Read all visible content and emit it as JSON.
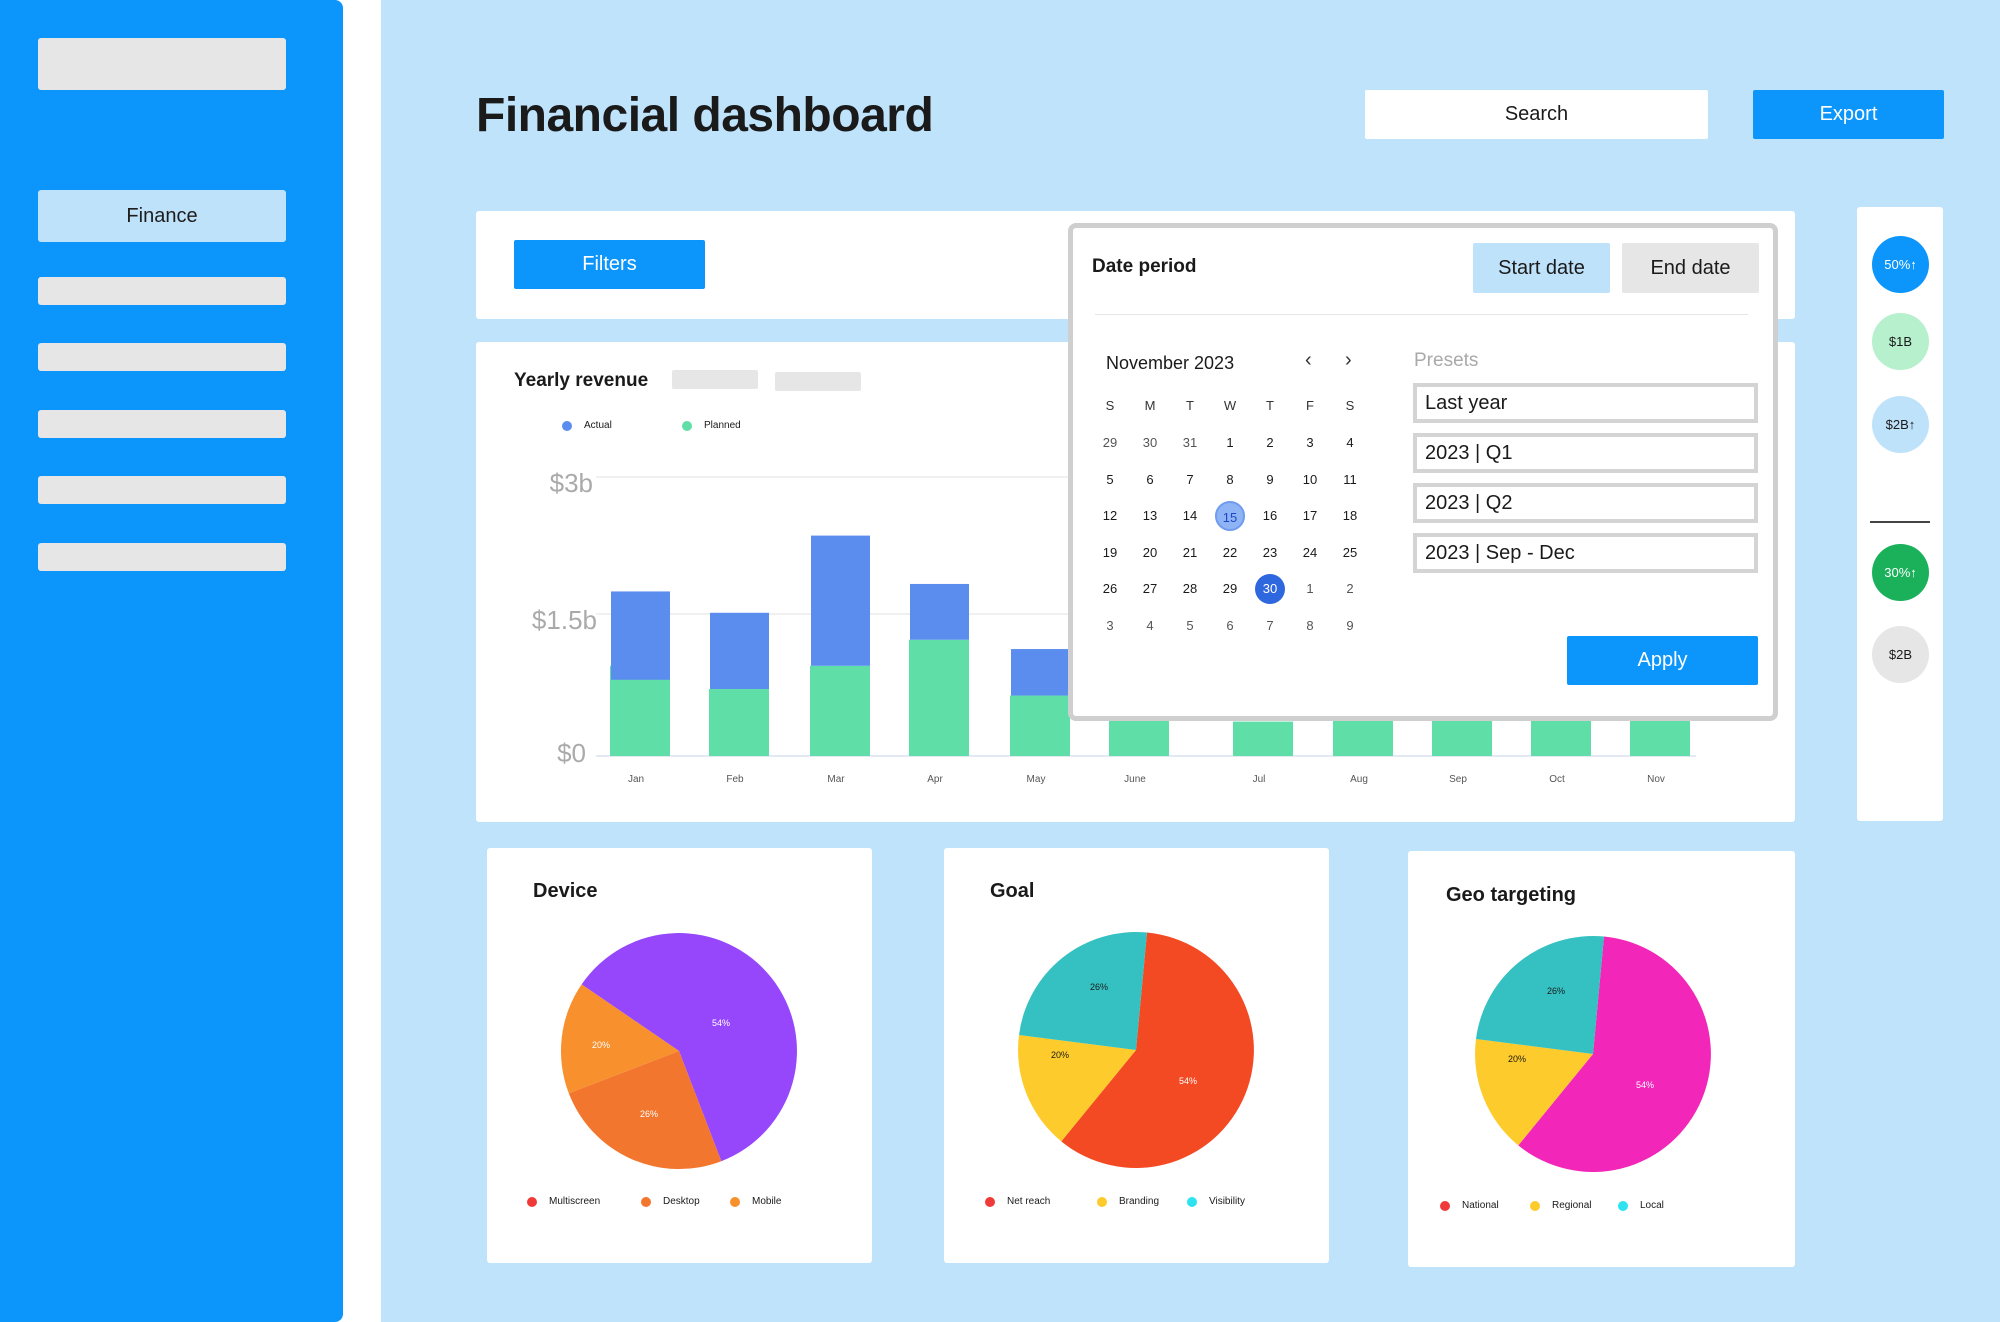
{
  "sidebar": {
    "active_label": "Finance"
  },
  "header": {
    "title": "Financial dashboard",
    "search_label": "Search",
    "export_label": "Export"
  },
  "filters": {
    "label": "Filters"
  },
  "revenue_chart": {
    "title": "Yearly revenue",
    "legend": [
      "Actual",
      "Planned"
    ],
    "y_ticks": [
      "$3b",
      "$1.5b",
      "$0"
    ]
  },
  "chart_data": {
    "type": "bar",
    "categories": [
      "Jan",
      "Feb",
      "Mar",
      "Apr",
      "May",
      "June",
      "Jul",
      "Aug",
      "Sep",
      "Oct",
      "Nov"
    ],
    "series": [
      {
        "name": "Planned",
        "values": [
          0.97,
          0.72,
          0.97,
          1.25,
          0.65,
          0.4,
          0.37,
          0.38,
          0.38,
          0.38,
          0.38
        ]
      },
      {
        "name": "Actual",
        "values": [
          0.95,
          0.82,
          1.4,
          0.6,
          0.5,
          null,
          null,
          null,
          null,
          null,
          null
        ]
      }
    ],
    "ylim": [
      0,
      3
    ]
  },
  "stats": [
    "50%↑",
    "$1B",
    "$2B↑",
    "30%↑",
    "$2B"
  ],
  "date_period": {
    "title": "Date period",
    "start_label": "Start date",
    "end_label": "End date",
    "month_label": "November 2023",
    "weekdays": [
      "S",
      "M",
      "T",
      "W",
      "T",
      "F",
      "S"
    ],
    "days": [
      "29",
      "30",
      "31",
      "1",
      "2",
      "3",
      "4",
      "5",
      "6",
      "7",
      "8",
      "9",
      "10",
      "11",
      "12",
      "13",
      "14",
      "15",
      "16",
      "17",
      "18",
      "19",
      "20",
      "21",
      "22",
      "23",
      "24",
      "25",
      "26",
      "27",
      "28",
      "29",
      "30",
      "1",
      "2",
      "3",
      "4",
      "5",
      "6",
      "7",
      "8",
      "9"
    ],
    "presets_label": "Presets",
    "presets": [
      "Last year",
      "2023 |  Q1",
      "2023 | Q2",
      "2023 | Sep - Dec"
    ],
    "apply_label": "Apply"
  },
  "pies": [
    {
      "title": "Device",
      "legend": [
        "Multiscreen",
        "Desktop",
        "Mobile"
      ],
      "labels": [
        "54%",
        "26%",
        "20%"
      ]
    },
    {
      "title": "Goal",
      "legend": [
        "Net reach",
        "Branding",
        "Visibility"
      ],
      "labels": [
        "54%",
        "20%",
        "26%"
      ]
    },
    {
      "title": "Geo targeting",
      "legend": [
        "National",
        "Regional",
        "Local"
      ],
      "labels": [
        "54%",
        "20%",
        "26%"
      ]
    }
  ],
  "colors": {
    "primary": "#0c96fb",
    "actual": "#5b8def",
    "planned": "#5fdea7"
  }
}
